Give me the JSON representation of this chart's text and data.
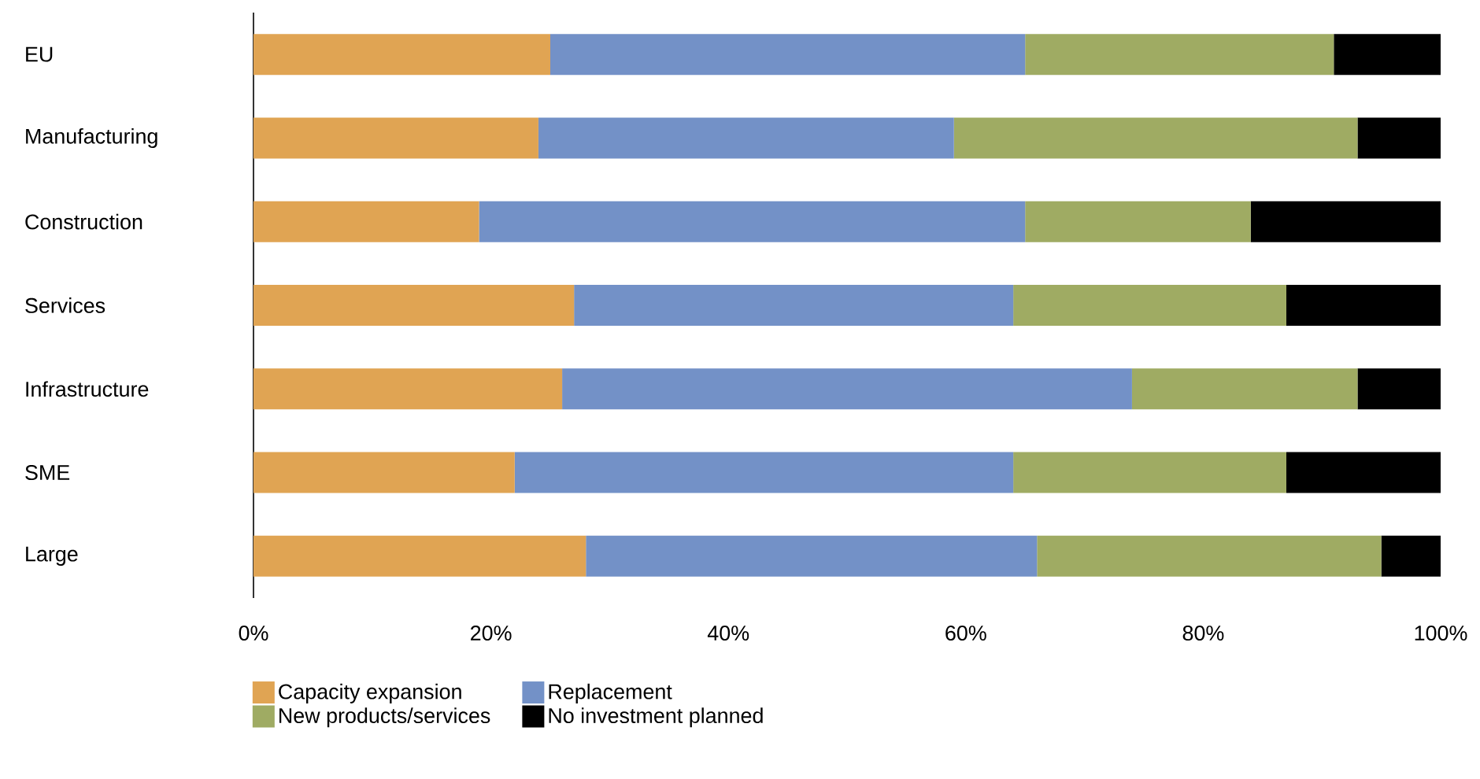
{
  "chart_data": {
    "type": "bar",
    "orientation": "horizontal",
    "stacked": true,
    "legend": "bottom",
    "categories": [
      "EU",
      "Manufacturing",
      "Construction",
      "Services",
      "Infrastructure",
      "SME",
      "Large"
    ],
    "series": [
      {
        "name": "Capacity expansion",
        "color": "#e0a453",
        "values": [
          25,
          24,
          19,
          27,
          26,
          22,
          28
        ]
      },
      {
        "name": "Replacement",
        "color": "#7391c7",
        "values": [
          40,
          35,
          46,
          37,
          48,
          42,
          38
        ]
      },
      {
        "name": "New products/services",
        "color": "#9fab63",
        "values": [
          26,
          34,
          19,
          23,
          19,
          23,
          29
        ]
      },
      {
        "name": "No investment planned",
        "color": "#000000",
        "values": [
          9,
          7,
          16,
          13,
          7,
          13,
          5
        ]
      }
    ],
    "xlim": [
      0,
      100
    ],
    "xticks": [
      {
        "value": 0,
        "label": "0%"
      },
      {
        "value": 20,
        "label": "20%"
      },
      {
        "value": 40,
        "label": "40%"
      },
      {
        "value": 60,
        "label": "60%"
      },
      {
        "value": 80,
        "label": "80%"
      },
      {
        "value": 100,
        "label": "100%"
      }
    ]
  }
}
